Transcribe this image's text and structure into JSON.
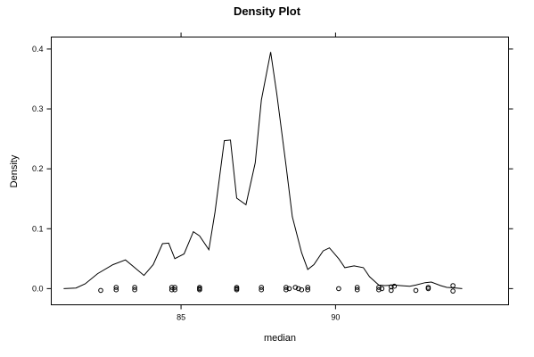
{
  "chart_data": {
    "type": "line",
    "title": "Density Plot",
    "xlabel": "median",
    "ylabel": "Density",
    "xlim": [
      80.8,
      95.6
    ],
    "ylim": [
      -0.027,
      0.42
    ],
    "x_ticks": [
      85,
      90
    ],
    "y_ticks": [
      0.0,
      0.1,
      0.2,
      0.3,
      0.4
    ],
    "y_tick_labels": [
      "0.0",
      "0.1",
      "0.2",
      "0.3",
      "0.4"
    ],
    "grid": false,
    "series": [
      {
        "x": [
          81.2,
          81.6,
          81.9,
          82.3,
          82.8,
          83.2,
          83.5,
          83.8,
          84.1,
          84.4,
          84.6,
          84.8,
          85.1,
          85.4,
          85.6,
          85.9,
          86.1,
          86.4,
          86.6,
          86.8,
          87.1,
          87.4,
          87.6,
          87.9,
          88.1,
          88.4,
          88.6,
          88.9,
          89.1,
          89.3,
          89.6,
          89.8,
          90.1,
          90.3,
          90.6,
          90.9,
          91.1,
          91.4,
          91.6,
          91.9,
          92.1,
          92.4,
          92.6,
          92.9,
          93.1,
          93.4,
          93.6,
          93.9,
          94.1
        ],
        "y": [
          0.0,
          0.001,
          0.008,
          0.025,
          0.04,
          0.048,
          0.035,
          0.022,
          0.04,
          0.075,
          0.076,
          0.05,
          0.058,
          0.095,
          0.088,
          0.065,
          0.128,
          0.247,
          0.248,
          0.151,
          0.14,
          0.21,
          0.315,
          0.395,
          0.325,
          0.205,
          0.12,
          0.06,
          0.032,
          0.04,
          0.063,
          0.068,
          0.05,
          0.035,
          0.038,
          0.035,
          0.02,
          0.006,
          0.005,
          0.006,
          0.005,
          0.004,
          0.006,
          0.01,
          0.011,
          0.005,
          0.002,
          0.001,
          0.0
        ]
      }
    ],
    "rug": {
      "x": [
        82.4,
        82.9,
        82.9,
        83.5,
        83.5,
        84.7,
        84.7,
        84.8,
        84.8,
        85.6,
        85.6,
        85.6,
        86.8,
        86.8,
        86.8,
        87.6,
        87.6,
        88.4,
        88.4,
        88.5,
        88.7,
        88.8,
        88.9,
        89.1,
        89.1,
        90.1,
        90.7,
        90.7,
        91.4,
        91.4,
        91.5,
        91.8,
        91.8,
        91.9,
        92.6,
        93.0,
        93.0,
        93.8,
        93.8
      ],
      "y": [
        -0.003,
        0.002,
        -0.002,
        0.002,
        -0.002,
        0.002,
        -0.002,
        0.002,
        -0.002,
        0.002,
        0.0,
        -0.002,
        0.002,
        0.0,
        -0.002,
        0.002,
        -0.002,
        0.002,
        -0.002,
        0.0,
        0.002,
        0.0,
        -0.002,
        0.002,
        -0.002,
        0.0,
        0.002,
        -0.002,
        0.002,
        -0.002,
        0.0,
        0.003,
        -0.003,
        0.004,
        -0.003,
        0.002,
        0.0,
        0.005,
        -0.004
      ]
    }
  }
}
